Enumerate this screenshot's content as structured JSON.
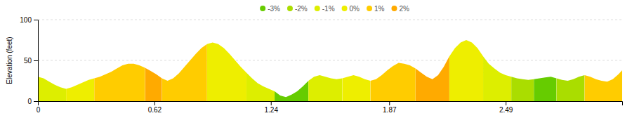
{
  "chart_data": {
    "type": "area",
    "y_label": "Elevation (feet)",
    "xlim": [
      0,
      3.11
    ],
    "ylim": [
      0,
      100
    ],
    "xticks": [
      0,
      0.62,
      1.24,
      1.87,
      2.49
    ],
    "yticks": [
      0,
      50,
      100
    ],
    "grid": true,
    "legend": "top",
    "legend_entries": [
      {
        "name": "-3%",
        "color": "#66cc00"
      },
      {
        "name": "-2%",
        "color": "#aadd00"
      },
      {
        "name": "-1%",
        "color": "#ddee00"
      },
      {
        "name": "0%",
        "color": "#eeee00"
      },
      {
        "name": "1%",
        "color": "#ffcc00"
      },
      {
        "name": "2%",
        "color": "#ffaa00"
      }
    ],
    "x": [
      0.0,
      0.03,
      0.06,
      0.09,
      0.12,
      0.15,
      0.18,
      0.21,
      0.24,
      0.27,
      0.3,
      0.33,
      0.36,
      0.39,
      0.42,
      0.45,
      0.48,
      0.51,
      0.54,
      0.57,
      0.6,
      0.63,
      0.66,
      0.69,
      0.72,
      0.75,
      0.78,
      0.81,
      0.84,
      0.87,
      0.9,
      0.93,
      0.96,
      0.99,
      1.02,
      1.05,
      1.08,
      1.11,
      1.14,
      1.17,
      1.2,
      1.23,
      1.26,
      1.29,
      1.32,
      1.35,
      1.38,
      1.41,
      1.44,
      1.47,
      1.5,
      1.53,
      1.56,
      1.59,
      1.62,
      1.65,
      1.68,
      1.71,
      1.74,
      1.77,
      1.8,
      1.83,
      1.86,
      1.89,
      1.92,
      1.95,
      1.98,
      2.01,
      2.04,
      2.07,
      2.1,
      2.13,
      2.16,
      2.19,
      2.22,
      2.25,
      2.28,
      2.31,
      2.34,
      2.37,
      2.4,
      2.43,
      2.46,
      2.49,
      2.52,
      2.55,
      2.58,
      2.61,
      2.64,
      2.67,
      2.7,
      2.73,
      2.76,
      2.79,
      2.82,
      2.85,
      2.88,
      2.91,
      2.94,
      2.97,
      3.0,
      3.03,
      3.06,
      3.09,
      3.11
    ],
    "values": [
      30,
      28,
      24,
      20,
      17,
      15,
      17,
      20,
      23,
      26,
      28,
      30,
      33,
      36,
      40,
      44,
      46,
      46,
      44,
      41,
      37,
      33,
      28,
      25,
      28,
      34,
      42,
      50,
      58,
      65,
      70,
      72,
      70,
      65,
      58,
      50,
      42,
      35,
      28,
      22,
      18,
      15,
      12,
      7,
      5,
      8,
      12,
      18,
      25,
      30,
      32,
      30,
      28,
      27,
      28,
      30,
      32,
      30,
      27,
      25,
      27,
      32,
      38,
      43,
      47,
      46,
      44,
      40,
      35,
      30,
      27,
      32,
      42,
      55,
      65,
      72,
      75,
      72,
      65,
      55,
      46,
      40,
      35,
      32,
      30,
      28,
      27,
      26,
      27,
      28,
      29,
      30,
      28,
      26,
      25,
      27,
      30,
      32,
      30,
      27,
      25,
      24,
      27,
      33,
      38
    ],
    "segments": [
      {
        "xstart": 0.0,
        "xend": 0.15,
        "color": "#ddee00"
      },
      {
        "xstart": 0.15,
        "xend": 0.3,
        "color": "#eeee00"
      },
      {
        "xstart": 0.3,
        "xend": 0.57,
        "color": "#ffcc00"
      },
      {
        "xstart": 0.57,
        "xend": 0.66,
        "color": "#ffaa00"
      },
      {
        "xstart": 0.66,
        "xend": 0.9,
        "color": "#ffcc00"
      },
      {
        "xstart": 0.9,
        "xend": 1.11,
        "color": "#eeee00"
      },
      {
        "xstart": 1.11,
        "xend": 1.26,
        "color": "#ddee00"
      },
      {
        "xstart": 1.26,
        "xend": 1.44,
        "color": "#66cc00"
      },
      {
        "xstart": 1.44,
        "xend": 1.62,
        "color": "#ddee00"
      },
      {
        "xstart": 1.62,
        "xend": 1.77,
        "color": "#eeee00"
      },
      {
        "xstart": 1.77,
        "xend": 2.01,
        "color": "#ffcc00"
      },
      {
        "xstart": 2.01,
        "xend": 2.19,
        "color": "#ffaa00"
      },
      {
        "xstart": 2.19,
        "xend": 2.37,
        "color": "#eeee00"
      },
      {
        "xstart": 2.37,
        "xend": 2.52,
        "color": "#ddee00"
      },
      {
        "xstart": 2.52,
        "xend": 2.64,
        "color": "#aadd00"
      },
      {
        "xstart": 2.64,
        "xend": 2.76,
        "color": "#66cc00"
      },
      {
        "xstart": 2.76,
        "xend": 2.91,
        "color": "#aadd00"
      },
      {
        "xstart": 2.91,
        "xend": 3.11,
        "color": "#ffcc00"
      }
    ]
  }
}
